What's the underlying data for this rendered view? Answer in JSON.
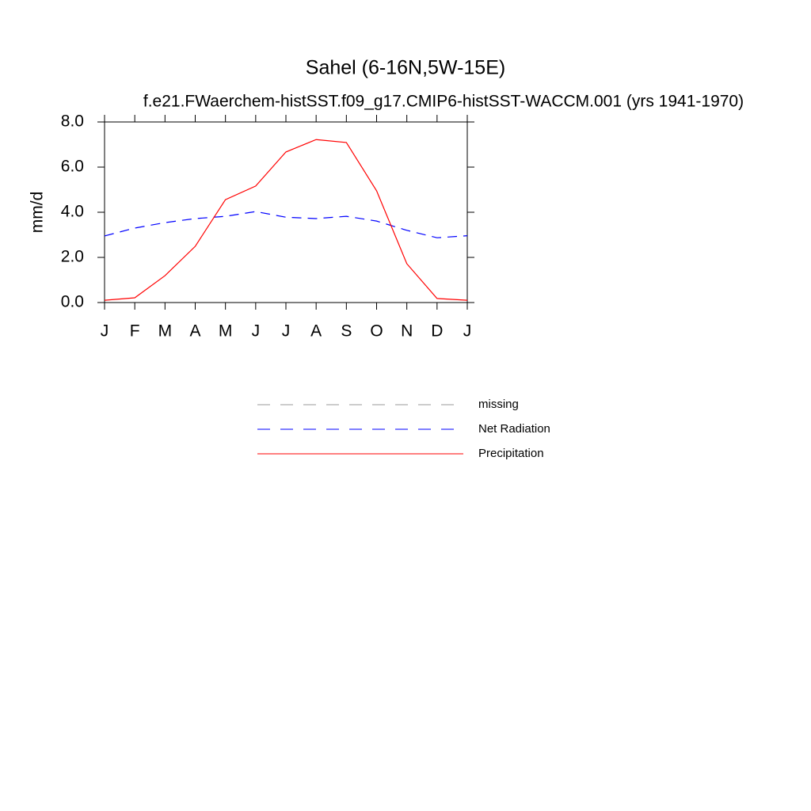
{
  "chart_data": {
    "type": "line",
    "title": "Sahel (6-16N,5W-15E)",
    "subtitle": "f.e21.FWaerchem-histSST.f09_g17.CMIP6-histSST-WACCM.001 (yrs 1941-1970)",
    "y_label": "mm/d",
    "categories": [
      "J",
      "F",
      "M",
      "A",
      "M",
      "J",
      "J",
      "A",
      "S",
      "O",
      "N",
      "D",
      "J"
    ],
    "series": [
      {
        "name": "missing",
        "color": "#999999",
        "dash": "dashed",
        "values": [
          null,
          null,
          null,
          null,
          null,
          null,
          null,
          null,
          null,
          null,
          null,
          null,
          null
        ]
      },
      {
        "name": "Net Radiation",
        "color": "#0000ff",
        "dash": "dashed",
        "values": [
          2.95,
          3.3,
          3.54,
          3.72,
          3.82,
          4.03,
          3.78,
          3.72,
          3.82,
          3.61,
          3.2,
          2.87,
          2.96
        ]
      },
      {
        "name": "Precipitation",
        "color": "#ff0000",
        "dash": "solid",
        "values": [
          0.1,
          0.21,
          1.19,
          2.49,
          4.56,
          5.16,
          6.67,
          7.22,
          7.09,
          4.95,
          1.72,
          0.18,
          0.1
        ]
      }
    ],
    "ylim": [
      0,
      8
    ],
    "yticks": [
      {
        "value": 0,
        "label": "0.0"
      },
      {
        "value": 2,
        "label": "2.0"
      },
      {
        "value": 4,
        "label": "4.0"
      },
      {
        "value": 6,
        "label": "6.0"
      },
      {
        "value": 8,
        "label": "8.0"
      }
    ]
  }
}
